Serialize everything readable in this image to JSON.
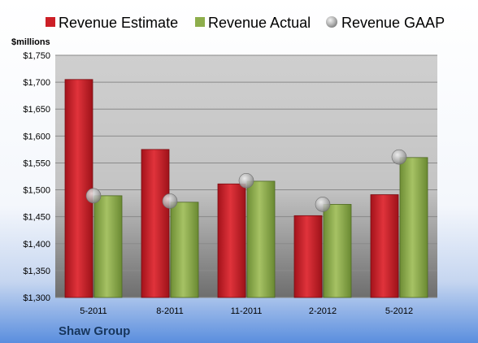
{
  "chart_data": {
    "type": "bar",
    "categories": [
      "5-2011",
      "8-2011",
      "11-2011",
      "2-2012",
      "5-2012"
    ],
    "series": [
      {
        "name": "Revenue Estimate",
        "values": [
          1705,
          1575,
          1511,
          1452,
          1491
        ],
        "color": "#cc1f27"
      },
      {
        "name": "Revenue Actual",
        "values": [
          1489,
          1477,
          1516,
          1473,
          1560
        ],
        "color": "#8eae4c"
      },
      {
        "name": "Revenue GAAP",
        "values": [
          1489,
          1479,
          1517,
          1473,
          1561
        ],
        "color": "#a8a8a8",
        "mark": "circle"
      }
    ],
    "ylabel": "$millions",
    "ylim": [
      1300,
      1750
    ],
    "yticks": [
      1300,
      1350,
      1400,
      1450,
      1500,
      1550,
      1600,
      1650,
      1700,
      1750
    ],
    "ytick_labels": [
      "$1,300",
      "$1,350",
      "$1,400",
      "$1,450",
      "$1,500",
      "$1,550",
      "$1,600",
      "$1,650",
      "$1,700",
      "$1,750"
    ],
    "grid": true,
    "legend_position": "top"
  },
  "footer": {
    "company": "Shaw Group"
  }
}
